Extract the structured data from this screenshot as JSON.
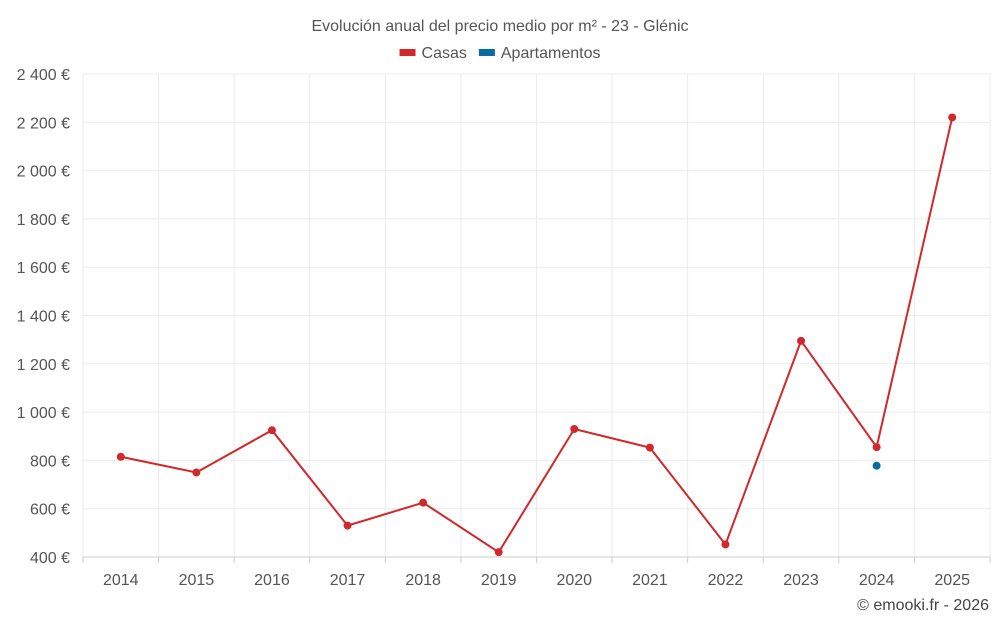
{
  "chart_data": {
    "type": "line",
    "title": "Evolución anual del precio medio por m² - 23 - Glénic",
    "x": [
      "2014",
      "2015",
      "2016",
      "2017",
      "2018",
      "2019",
      "2020",
      "2021",
      "2022",
      "2023",
      "2024",
      "2025"
    ],
    "series": [
      {
        "name": "Casas",
        "color": "#d0282b",
        "values": [
          815,
          750,
          925,
          530,
          625,
          420,
          930,
          853,
          452,
          1295,
          855,
          2220
        ]
      },
      {
        "name": "Apartamentos",
        "color": "#086ca2",
        "values": [
          null,
          null,
          null,
          null,
          null,
          null,
          null,
          null,
          null,
          null,
          778,
          null
        ]
      }
    ],
    "ylim": [
      400,
      2400
    ],
    "yticks": [
      400,
      600,
      800,
      1000,
      1200,
      1400,
      1600,
      1800,
      2000,
      2200,
      2400
    ],
    "ytick_labels": [
      "400 €",
      "600 €",
      "800 €",
      "1 000 €",
      "1 200 €",
      "1 400 €",
      "1 600 €",
      "1 800 €",
      "2 000 €",
      "2 200 €",
      "2 400 €"
    ],
    "grid": true,
    "legend_position": "top-center"
  },
  "credit": "© emooki.fr - 2026"
}
